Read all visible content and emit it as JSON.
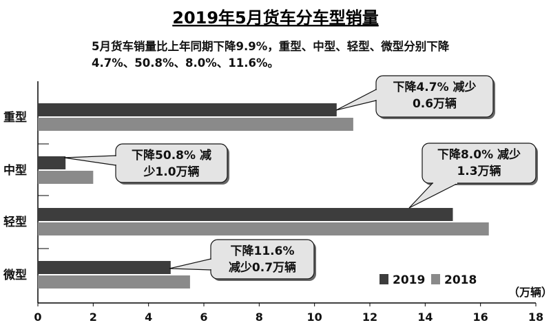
{
  "chart_data": {
    "type": "bar",
    "orientation": "horizontal",
    "title": "2019年5月货车分车型销量",
    "subtitle_lines": [
      "5月货车销量比上年同期下降9.9%，重型、中型、轻型、微型分别下降",
      "4.7%、50.8%、8.0%、11.6%。"
    ],
    "categories": [
      "重型",
      "中型",
      "轻型",
      "微型"
    ],
    "series": [
      {
        "name": "2019",
        "color": "#3d3d3d",
        "values": [
          10.8,
          1.0,
          15.0,
          4.8
        ]
      },
      {
        "name": "2018",
        "color": "#8a8a8a",
        "values": [
          11.4,
          2.0,
          16.3,
          5.5
        ]
      }
    ],
    "xlim": [
      0,
      18
    ],
    "xticks": [
      0,
      2,
      4,
      6,
      8,
      10,
      12,
      14,
      16,
      18
    ],
    "unit": "（万辆）",
    "legend_position": "bottom-right",
    "annotations": [
      {
        "category": "重型",
        "lines": [
          "下降4.7% 减少",
          "0.6万辆"
        ]
      },
      {
        "category": "中型",
        "lines": [
          "下降50.8% 减",
          "少1.0万辆"
        ]
      },
      {
        "category": "轻型",
        "lines": [
          "下降8.0% 减少",
          "1.3万辆"
        ]
      },
      {
        "category": "微型",
        "lines": [
          "下降11.6%",
          "减少0.7万辆"
        ]
      }
    ]
  }
}
